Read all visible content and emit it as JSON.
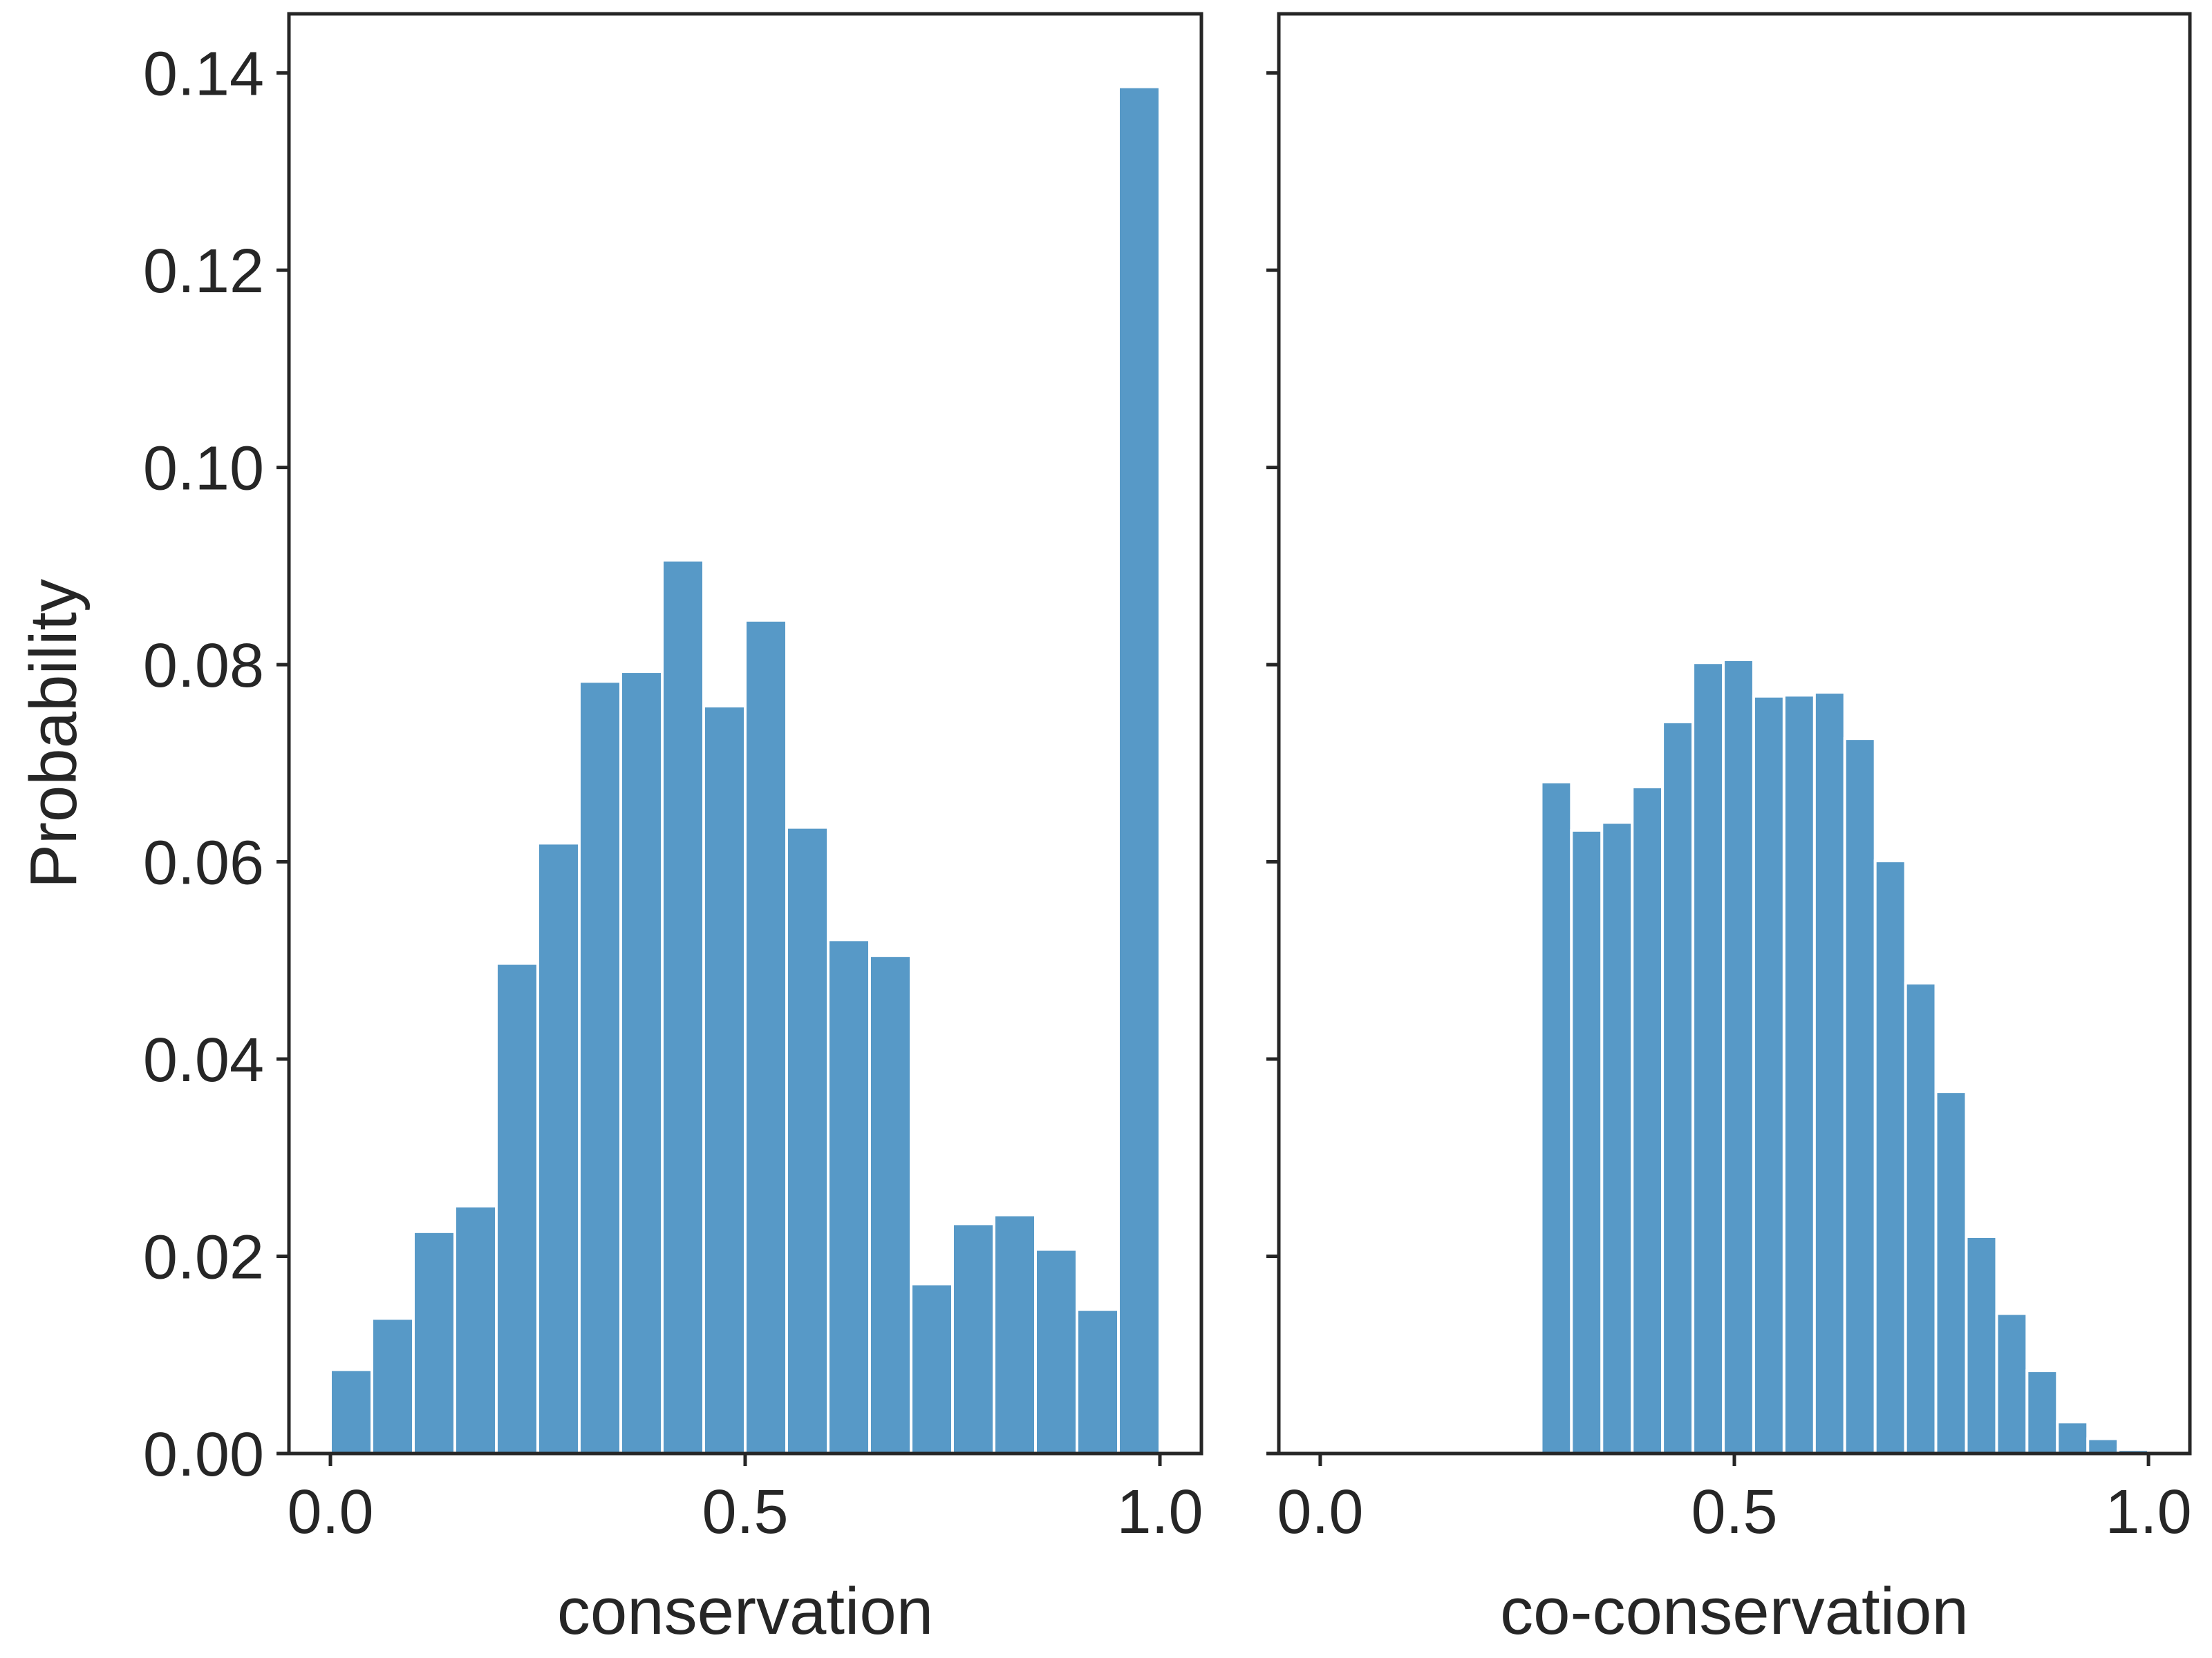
{
  "colors": {
    "bar": "#5799c7",
    "axes": "#262626",
    "background": "#ffffff"
  },
  "chart_data": [
    {
      "type": "bar",
      "panel": "left",
      "xlabel": "conservation",
      "ylabel": "Probability",
      "xlim": [
        -0.05,
        1.05
      ],
      "ylim": [
        0,
        0.146
      ],
      "xticks": [
        "0.0",
        "0.5",
        "1.0"
      ],
      "xtick_values": [
        0.0,
        0.5,
        1.0
      ],
      "yticks": [
        "0.00",
        "0.02",
        "0.04",
        "0.06",
        "0.08",
        "0.10",
        "0.12",
        "0.14"
      ],
      "ytick_values": [
        0.0,
        0.02,
        0.04,
        0.06,
        0.08,
        0.1,
        0.12,
        0.14
      ],
      "bin_edges": [
        0.0,
        0.05,
        0.1,
        0.15,
        0.2,
        0.25,
        0.3,
        0.35,
        0.4,
        0.45,
        0.5,
        0.55,
        0.6,
        0.65,
        0.7,
        0.75,
        0.8,
        0.85,
        0.9,
        0.95,
        1.0
      ],
      "values": [
        0.0085,
        0.0137,
        0.0225,
        0.0251,
        0.0497,
        0.0619,
        0.0783,
        0.0793,
        0.0906,
        0.0758,
        0.0845,
        0.0635,
        0.0521,
        0.0505,
        0.0172,
        0.0233,
        0.0242,
        0.0207,
        0.0146,
        0.1386
      ],
      "grid": false,
      "legend": "none"
    },
    {
      "type": "bar",
      "panel": "right",
      "xlabel": "co-conservation",
      "ylabel": "",
      "xlim": [
        -0.05,
        1.05
      ],
      "ylim": [
        0,
        0.146
      ],
      "xticks": [
        "0.0",
        "0.5",
        "1.0"
      ],
      "xtick_values": [
        0.0,
        0.5,
        1.0
      ],
      "yticks": [],
      "ytick_values": [
        0.0,
        0.02,
        0.04,
        0.06,
        0.08,
        0.1,
        0.12,
        0.14
      ],
      "bin_edges": [
        0.2667,
        0.3033,
        0.34,
        0.3767,
        0.4133,
        0.45,
        0.4867,
        0.5233,
        0.56,
        0.5967,
        0.6333,
        0.67,
        0.7067,
        0.7433,
        0.78,
        0.8167,
        0.8533,
        0.89,
        0.9267,
        0.9633,
        1.0
      ],
      "values": [
        0.0681,
        0.0632,
        0.064,
        0.0676,
        0.0742,
        0.0802,
        0.0805,
        0.0768,
        0.0769,
        0.0772,
        0.0725,
        0.0601,
        0.0477,
        0.0367,
        0.022,
        0.0142,
        0.0084,
        0.0032,
        0.0015,
        0.0004
      ],
      "grid": false,
      "legend": "none"
    }
  ]
}
